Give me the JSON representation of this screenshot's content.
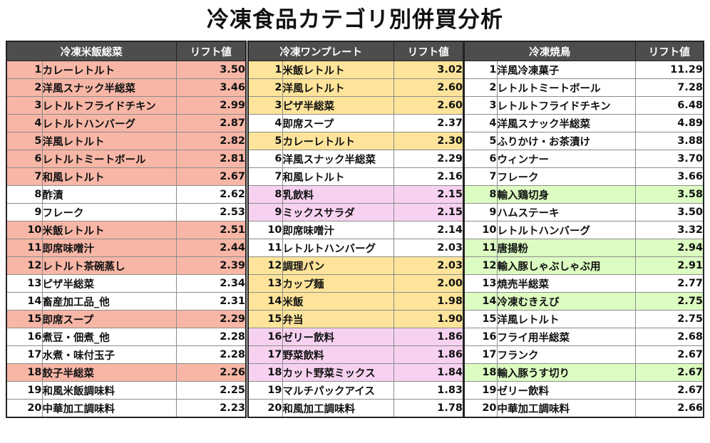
{
  "title": "冷凍食品カテゴリ別併買分析",
  "colors": {
    "header_bg": "#4d4d4d",
    "salmon": "#f7b6a6",
    "yellow": "#fde49a",
    "pink": "#f6d2f0",
    "green": "#dcfcc2",
    "white": "#ffffff"
  },
  "tables": [
    {
      "category": "冷凍米飯総菜",
      "lift_header": "リフト値",
      "rows": [
        {
          "rank": "1",
          "name": "カレーレトルト",
          "lift": "3.50",
          "hl": "salmon"
        },
        {
          "rank": "2",
          "name": "洋風スナック半総菜",
          "lift": "3.46",
          "hl": "salmon"
        },
        {
          "rank": "3",
          "name": "レトルトフライドチキン",
          "lift": "2.99",
          "hl": "salmon"
        },
        {
          "rank": "4",
          "name": "レトルトハンバーグ",
          "lift": "2.87",
          "hl": "salmon"
        },
        {
          "rank": "5",
          "name": "洋風レトルト",
          "lift": "2.82",
          "hl": "salmon"
        },
        {
          "rank": "6",
          "name": "レトルトミートボール",
          "lift": "2.81",
          "hl": "salmon"
        },
        {
          "rank": "7",
          "name": "和風レトルト",
          "lift": "2.67",
          "hl": "salmon"
        },
        {
          "rank": "8",
          "name": "酢漬",
          "lift": "2.62",
          "hl": "white"
        },
        {
          "rank": "9",
          "name": "フレーク",
          "lift": "2.53",
          "hl": "white"
        },
        {
          "rank": "10",
          "name": "米飯レトルト",
          "lift": "2.51",
          "hl": "salmon"
        },
        {
          "rank": "11",
          "name": "即席味噌汁",
          "lift": "2.44",
          "hl": "salmon"
        },
        {
          "rank": "12",
          "name": "レトルト茶碗蒸し",
          "lift": "2.39",
          "hl": "salmon"
        },
        {
          "rank": "13",
          "name": "ピザ半総菜",
          "lift": "2.34",
          "hl": "white"
        },
        {
          "rank": "14",
          "name": "畜産加工品_他",
          "lift": "2.31",
          "hl": "white"
        },
        {
          "rank": "15",
          "name": "即席スープ",
          "lift": "2.29",
          "hl": "salmon"
        },
        {
          "rank": "16",
          "name": "煮豆・佃煮_他",
          "lift": "2.28",
          "hl": "white"
        },
        {
          "rank": "17",
          "name": "水煮・味付玉子",
          "lift": "2.28",
          "hl": "white"
        },
        {
          "rank": "18",
          "name": "餃子半総菜",
          "lift": "2.26",
          "hl": "salmon"
        },
        {
          "rank": "19",
          "name": "和風米飯調味料",
          "lift": "2.25",
          "hl": "white"
        },
        {
          "rank": "20",
          "name": "中華加工調味料",
          "lift": "2.23",
          "hl": "white"
        }
      ]
    },
    {
      "category": "冷凍ワンプレート",
      "lift_header": "リフト値",
      "rows": [
        {
          "rank": "1",
          "name": "米飯レトルト",
          "lift": "3.02",
          "hl": "yellow"
        },
        {
          "rank": "2",
          "name": "洋風レトルト",
          "lift": "2.60",
          "hl": "yellow"
        },
        {
          "rank": "3",
          "name": "ピザ半総菜",
          "lift": "2.60",
          "hl": "yellow"
        },
        {
          "rank": "4",
          "name": "即席スープ",
          "lift": "2.37",
          "hl": "white"
        },
        {
          "rank": "5",
          "name": "カレーレトルト",
          "lift": "2.30",
          "hl": "yellow"
        },
        {
          "rank": "6",
          "name": "洋風スナック半総菜",
          "lift": "2.29",
          "hl": "white"
        },
        {
          "rank": "7",
          "name": "和風レトルト",
          "lift": "2.16",
          "hl": "white"
        },
        {
          "rank": "8",
          "name": "乳飲料",
          "lift": "2.15",
          "hl": "pink"
        },
        {
          "rank": "9",
          "name": "ミックスサラダ",
          "lift": "2.15",
          "hl": "pink"
        },
        {
          "rank": "10",
          "name": "即席味噌汁",
          "lift": "2.14",
          "hl": "white"
        },
        {
          "rank": "11",
          "name": "レトルトハンバーグ",
          "lift": "2.03",
          "hl": "white"
        },
        {
          "rank": "12",
          "name": "調理パン",
          "lift": "2.03",
          "hl": "yellow"
        },
        {
          "rank": "13",
          "name": "カップ麺",
          "lift": "2.00",
          "hl": "yellow"
        },
        {
          "rank": "14",
          "name": "米飯",
          "lift": "1.98",
          "hl": "yellow"
        },
        {
          "rank": "15",
          "name": "弁当",
          "lift": "1.90",
          "hl": "yellow"
        },
        {
          "rank": "16",
          "name": "ゼリー飲料",
          "lift": "1.86",
          "hl": "pink"
        },
        {
          "rank": "17",
          "name": "野菜飲料",
          "lift": "1.86",
          "hl": "pink"
        },
        {
          "rank": "18",
          "name": "カット野菜ミックス",
          "lift": "1.84",
          "hl": "pink"
        },
        {
          "rank": "19",
          "name": "マルチパックアイス",
          "lift": "1.83",
          "hl": "white"
        },
        {
          "rank": "20",
          "name": "和風加工調味料",
          "lift": "1.78",
          "hl": "white"
        }
      ]
    },
    {
      "category": "冷凍焼鳥",
      "lift_header": "リフト値",
      "rows": [
        {
          "rank": "1",
          "name": "洋風冷凍菓子",
          "lift": "11.29",
          "hl": "white"
        },
        {
          "rank": "2",
          "name": "レトルトミートボール",
          "lift": "7.28",
          "hl": "white"
        },
        {
          "rank": "3",
          "name": "レトルトフライドチキン",
          "lift": "6.48",
          "hl": "white"
        },
        {
          "rank": "4",
          "name": "洋風スナック半総菜",
          "lift": "4.89",
          "hl": "white"
        },
        {
          "rank": "5",
          "name": "ふりかけ・お茶漬け",
          "lift": "3.88",
          "hl": "white"
        },
        {
          "rank": "6",
          "name": "ウィンナー",
          "lift": "3.70",
          "hl": "white"
        },
        {
          "rank": "7",
          "name": "フレーク",
          "lift": "3.66",
          "hl": "white"
        },
        {
          "rank": "8",
          "name": "輸入鶏切身",
          "lift": "3.58",
          "hl": "green"
        },
        {
          "rank": "9",
          "name": "ハムステーキ",
          "lift": "3.50",
          "hl": "white"
        },
        {
          "rank": "10",
          "name": "レトルトハンバーグ",
          "lift": "3.32",
          "hl": "white"
        },
        {
          "rank": "11",
          "name": "唐揚粉",
          "lift": "2.94",
          "hl": "green"
        },
        {
          "rank": "12",
          "name": "輸入豚しゃぶしゃぶ用",
          "lift": "2.91",
          "hl": "green"
        },
        {
          "rank": "13",
          "name": "焼売半総菜",
          "lift": "2.77",
          "hl": "white"
        },
        {
          "rank": "14",
          "name": "冷凍むきえび",
          "lift": "2.75",
          "hl": "green"
        },
        {
          "rank": "15",
          "name": "洋風レトルト",
          "lift": "2.75",
          "hl": "white"
        },
        {
          "rank": "16",
          "name": "フライ用半総菜",
          "lift": "2.68",
          "hl": "white"
        },
        {
          "rank": "17",
          "name": "フランク",
          "lift": "2.67",
          "hl": "white"
        },
        {
          "rank": "18",
          "name": "輸入豚うす切り",
          "lift": "2.67",
          "hl": "green"
        },
        {
          "rank": "19",
          "name": "ゼリー飲料",
          "lift": "2.67",
          "hl": "white"
        },
        {
          "rank": "20",
          "name": "中華加工調味料",
          "lift": "2.66",
          "hl": "white"
        }
      ]
    }
  ]
}
